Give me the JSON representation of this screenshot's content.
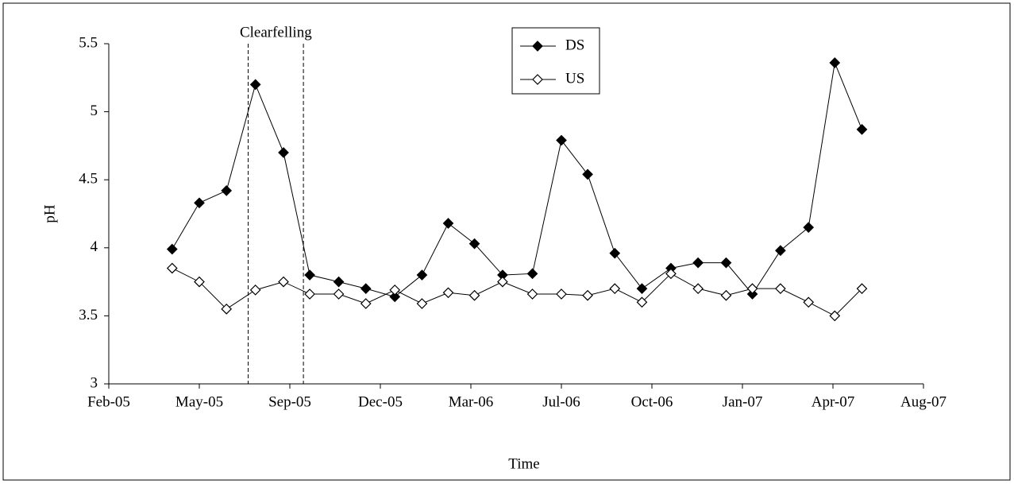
{
  "chart_data": {
    "type": "line",
    "y_label": "pH",
    "x_label": "Time",
    "xlim": [
      0,
      9
    ],
    "xticks": [
      {
        "value": 0,
        "label": "Feb-05"
      },
      {
        "value": 1,
        "label": "May-05"
      },
      {
        "value": 2,
        "label": "Sep-05"
      },
      {
        "value": 3,
        "label": "Dec-05"
      },
      {
        "value": 4,
        "label": "Mar-06"
      },
      {
        "value": 5,
        "label": "Jul-06"
      },
      {
        "value": 6,
        "label": "Oct-06"
      },
      {
        "value": 7,
        "label": "Jan-07"
      },
      {
        "value": 8,
        "label": "Apr-07"
      },
      {
        "value": 9,
        "label": "Aug-07"
      }
    ],
    "ylim": [
      3,
      5.5
    ],
    "yticks": [
      3,
      3.5,
      4,
      4.5,
      5,
      5.5
    ],
    "grid": false,
    "legend": "top",
    "annotation": {
      "text": "Clearfelling",
      "x": [
        1.54,
        2.15
      ]
    },
    "x": [
      0.7,
      1.0,
      1.3,
      1.62,
      1.93,
      2.22,
      2.54,
      2.84,
      3.16,
      3.46,
      3.75,
      4.04,
      4.35,
      4.68,
      5.0,
      5.29,
      5.59,
      5.89,
      6.21,
      6.51,
      6.82,
      7.11,
      7.42,
      7.73,
      8.02,
      8.32
    ],
    "series": [
      {
        "name": "DS",
        "color": "#000000",
        "marker": "filled",
        "values": [
          3.99,
          4.33,
          4.42,
          5.2,
          4.7,
          3.8,
          3.75,
          3.7,
          3.64,
          3.8,
          4.18,
          4.03,
          3.8,
          3.81,
          4.79,
          4.54,
          3.96,
          3.7,
          3.85,
          3.89,
          3.89,
          3.66,
          3.98,
          4.15,
          5.36,
          4.87
        ]
      },
      {
        "name": "US",
        "color": "#000000",
        "marker": "open",
        "values": [
          3.85,
          3.75,
          3.55,
          3.69,
          3.75,
          3.66,
          3.66,
          3.59,
          3.69,
          3.59,
          3.67,
          3.65,
          3.75,
          3.66,
          3.66,
          3.65,
          3.7,
          3.6,
          3.81,
          3.7,
          3.65,
          3.7,
          3.7,
          3.6,
          3.5,
          3.7
        ]
      }
    ]
  }
}
